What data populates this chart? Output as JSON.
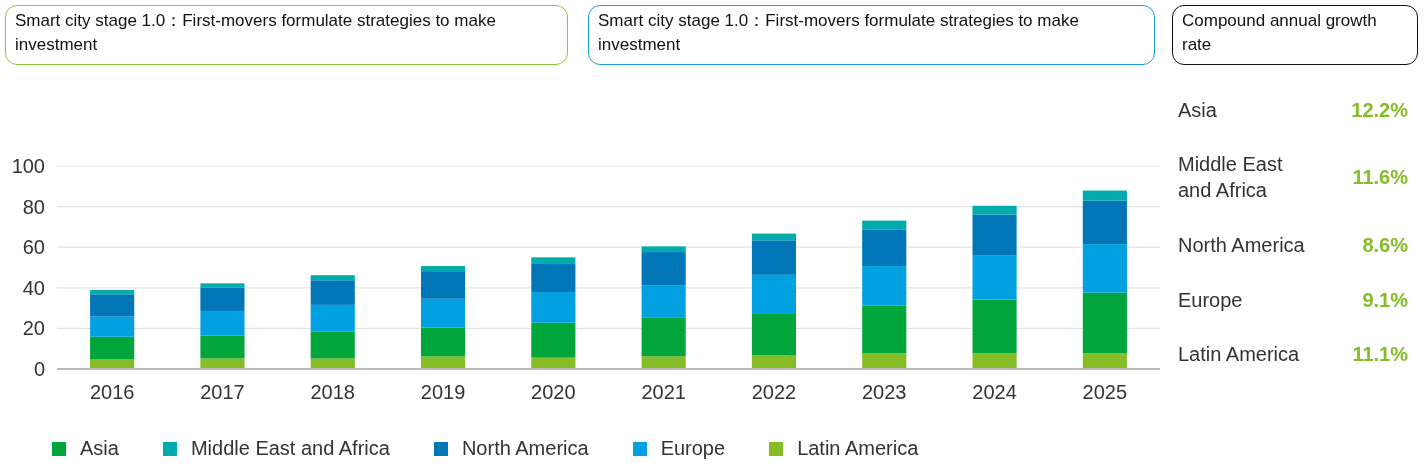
{
  "chart_data": {
    "type": "bar",
    "stacked": true,
    "categories": [
      "2016",
      "2017",
      "2018",
      "2019",
      "2020",
      "2021",
      "2022",
      "2023",
      "2024",
      "2025"
    ],
    "series": [
      {
        "name": "Latin America",
        "color": "#86bc25",
        "values": [
          4.7,
          5.2,
          5.2,
          6.2,
          5.6,
          6.2,
          6.7,
          7.7,
          7.7,
          7.7
        ]
      },
      {
        "name": "Asia",
        "color": "#00a63c",
        "values": [
          11.2,
          11.2,
          13.3,
          14.2,
          17.2,
          19.0,
          20.4,
          23.5,
          26.5,
          29.9
        ]
      },
      {
        "name": "Europe",
        "color": "#00a0e1",
        "values": [
          9.9,
          12.2,
          13.1,
          14.2,
          15.1,
          16.1,
          19.3,
          19.5,
          21.9,
          23.9
        ]
      },
      {
        "name": "North America",
        "color": "#0076b6",
        "values": [
          11.0,
          11.4,
          12.1,
          13.6,
          14.2,
          16.3,
          17.0,
          18.1,
          20.0,
          21.5
        ]
      },
      {
        "name": "Middle East and Africa",
        "color": "#00aaad",
        "values": [
          2.1,
          2.2,
          2.5,
          2.5,
          2.9,
          2.8,
          3.3,
          4.3,
          4.3,
          4.9
        ]
      }
    ],
    "ylim": [
      0,
      100
    ],
    "yticks": [
      0,
      20,
      40,
      60,
      80,
      100
    ],
    "grid": "y",
    "legend": "bottom",
    "annotations": [
      "Smart city stage 1.0：First-movers formulate strategies to make investment",
      "Smart city stage 1.0：First-movers formulate strategies to make investment",
      "Compound annual growth rate",
      "Asia",
      "12.2%",
      "Middle East\nand Africa",
      "11.6%",
      "North America",
      "8.6%",
      "Europe",
      "9.1%",
      "Latin America",
      "11.1%"
    ]
  }
}
